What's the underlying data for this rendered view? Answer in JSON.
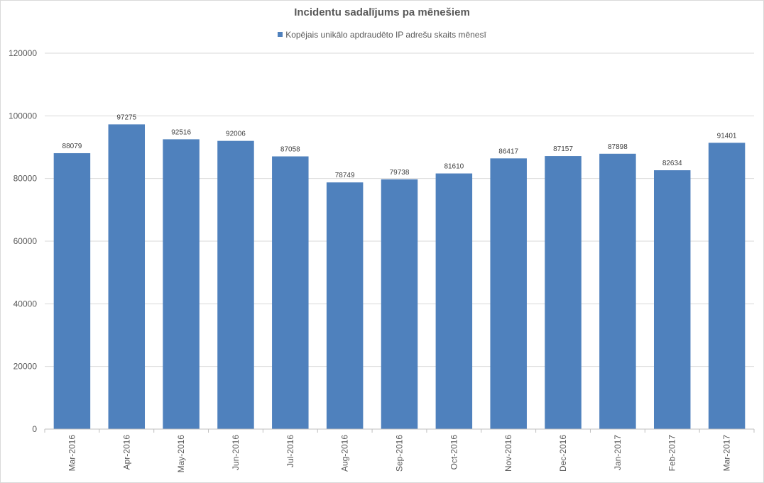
{
  "chart_data": {
    "type": "bar",
    "title": "Incidentu sadalījums pa mēnešiem",
    "xlabel": "",
    "ylabel": "",
    "ylim": [
      0,
      120000
    ],
    "yticks": [
      0,
      20000,
      40000,
      60000,
      80000,
      100000,
      120000
    ],
    "yticks_labels": [
      "0",
      "20000",
      "40000",
      "60000",
      "80000",
      "100000",
      "120000"
    ],
    "grid": true,
    "legend_position": "top",
    "categories": [
      "Mar-2016",
      "Apr-2016",
      "May-2016",
      "Jun-2016",
      "Jul-2016",
      "Aug-2016",
      "Sep-2016",
      "Oct-2016",
      "Nov-2016",
      "Dec-2016",
      "Jan-2017",
      "Feb-2017",
      "Mar-2017"
    ],
    "series": [
      {
        "name": "Kopējais unikālo apdraudēto IP adrešu skaits mēnesī",
        "color": "#4f81bd",
        "values": [
          88079,
          97275,
          92516,
          92006,
          87058,
          78749,
          79738,
          81610,
          86417,
          87157,
          87898,
          82634,
          91401
        ]
      }
    ]
  }
}
